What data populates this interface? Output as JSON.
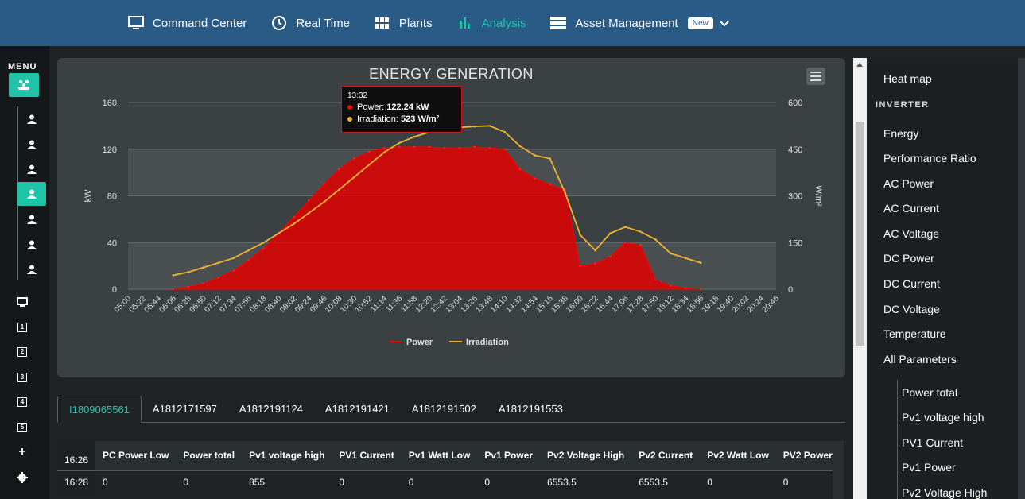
{
  "topnav": {
    "items": [
      {
        "label": "Command Center",
        "icon": "monitor-icon"
      },
      {
        "label": "Real Time",
        "icon": "clock-icon"
      },
      {
        "label": "Plants",
        "icon": "grid-icon"
      },
      {
        "label": "Analysis",
        "icon": "bar-chart-icon",
        "active": true
      },
      {
        "label": "Asset Management",
        "icon": "list-icon"
      }
    ],
    "badge": "New"
  },
  "leftbar": {
    "menu_label": "MENU",
    "items": [
      {
        "icon": "user-icon"
      },
      {
        "icon": "user-icon"
      },
      {
        "icon": "user-icon"
      },
      {
        "icon": "user-icon",
        "active": true
      },
      {
        "icon": "user-icon"
      },
      {
        "icon": "user-icon"
      },
      {
        "icon": "user-icon"
      }
    ],
    "bottom_items": [
      {
        "icon": "monitor-icon",
        "label": ""
      },
      {
        "icon": "number-box-icon",
        "label": "1"
      },
      {
        "icon": "number-box-icon",
        "label": "2"
      },
      {
        "icon": "number-box-icon",
        "label": "3"
      },
      {
        "icon": "number-box-icon",
        "label": "4"
      },
      {
        "icon": "number-box-icon",
        "label": "5"
      },
      {
        "icon": "plus-icon",
        "label": "+"
      },
      {
        "icon": "gear-icon",
        "label": ""
      }
    ]
  },
  "chart": {
    "tooltip": {
      "time": "13:32",
      "power_label": "Power:",
      "power_value": "122.24 kW",
      "irr_label": "Irradiation:",
      "irr_value": "523 W/m²"
    }
  },
  "chart_data": {
    "type": "area",
    "title": "ENERGY GENERATION",
    "ylabel": "kW",
    "y2label": "W/m²",
    "ylim": [
      0,
      160
    ],
    "y2lim": [
      0,
      600
    ],
    "yticks": [
      0,
      40,
      80,
      120,
      160
    ],
    "y2ticks": [
      0,
      150,
      300,
      450,
      600
    ],
    "xticks": [
      "05:00",
      "05:22",
      "05:44",
      "06:06",
      "06:28",
      "06:50",
      "07:12",
      "07:34",
      "07:56",
      "08:18",
      "08:40",
      "09:02",
      "09:24",
      "09:46",
      "10:08",
      "10:30",
      "10:52",
      "11:14",
      "11:36",
      "11:58",
      "12:20",
      "12:42",
      "13:04",
      "13:26",
      "13:48",
      "14:10",
      "14:32",
      "14:54",
      "15:16",
      "15:38",
      "16:00",
      "16:22",
      "16:44",
      "17:06",
      "17:28",
      "17:50",
      "18:12",
      "18:34",
      "18:56",
      "19:18",
      "19:40",
      "20:02",
      "20:24",
      "20:46"
    ],
    "legend": [
      "Power",
      "Irradiation"
    ],
    "legend_position": "bottom",
    "series": [
      {
        "name": "Power",
        "color": "#ff0000",
        "x": [
          "06:06",
          "06:28",
          "06:50",
          "07:12",
          "07:34",
          "07:56",
          "08:18",
          "08:40",
          "09:02",
          "09:24",
          "09:46",
          "10:08",
          "10:30",
          "10:52",
          "11:14",
          "11:36",
          "11:58",
          "12:20",
          "12:42",
          "13:04",
          "13:26",
          "13:48",
          "14:10",
          "14:32",
          "14:54",
          "15:16",
          "15:38",
          "16:00",
          "16:22",
          "16:44",
          "17:06",
          "17:28",
          "17:50",
          "18:12",
          "18:34",
          "18:56"
        ],
        "values": [
          0,
          2,
          5,
          10,
          16,
          25,
          35,
          48,
          62,
          76,
          90,
          103,
          112,
          118,
          121,
          122,
          122,
          122,
          121,
          121,
          122,
          121,
          120,
          103,
          95,
          90,
          85,
          20,
          22,
          28,
          40,
          38,
          8,
          3,
          1,
          0
        ]
      },
      {
        "name": "Irradiation",
        "color": "#f0b232",
        "x": [
          "06:06",
          "06:28",
          "06:50",
          "07:12",
          "07:34",
          "07:56",
          "08:18",
          "08:40",
          "09:02",
          "09:24",
          "09:46",
          "10:08",
          "10:30",
          "10:52",
          "11:14",
          "11:36",
          "11:58",
          "12:20",
          "12:42",
          "13:04",
          "13:26",
          "13:48",
          "14:10",
          "14:32",
          "14:54",
          "15:16",
          "15:38",
          "16:00",
          "16:22",
          "16:44",
          "17:06",
          "17:28",
          "17:50",
          "18:12",
          "18:34",
          "18:56"
        ],
        "values": [
          45,
          55,
          70,
          85,
          100,
          125,
          150,
          180,
          210,
          245,
          280,
          320,
          360,
          400,
          440,
          470,
          490,
          505,
          515,
          520,
          523,
          525,
          505,
          460,
          430,
          420,
          310,
          175,
          125,
          180,
          200,
          185,
          160,
          115,
          100,
          85
        ]
      }
    ]
  },
  "tabs": [
    "I1809065561",
    "A1812171597",
    "A1812191124",
    "A1812191421",
    "A1812191502",
    "A1812191553"
  ],
  "table": {
    "header_time": "16:26",
    "columns": [
      "PC Power Low",
      "Power total",
      "Pv1 voltage high",
      "PV1 Current",
      "Pv1 Watt Low",
      "Pv1 Power",
      "Pv2 Voltage High",
      "Pv2 Current",
      "Pv2 Watt Low",
      "PV2 Power"
    ],
    "rows": [
      {
        "time": "16:28",
        "cells": [
          "0",
          "0",
          "855",
          "0",
          "0",
          "0",
          "6553.5",
          "6553.5",
          "0",
          "0"
        ]
      }
    ]
  },
  "rightpanel": {
    "top_item": "Heat map",
    "section": "INVERTER",
    "items": [
      "Energy",
      "Performance Ratio",
      "AC Power",
      "AC Current",
      "AC Voltage",
      "DC Power",
      "DC Current",
      "DC Voltage",
      "Temperature",
      "All Parameters"
    ],
    "subitems": [
      "Power total",
      "Pv1 voltage high",
      "PV1 Current",
      "Pv1 Power",
      "Pv2 Voltage High"
    ]
  }
}
